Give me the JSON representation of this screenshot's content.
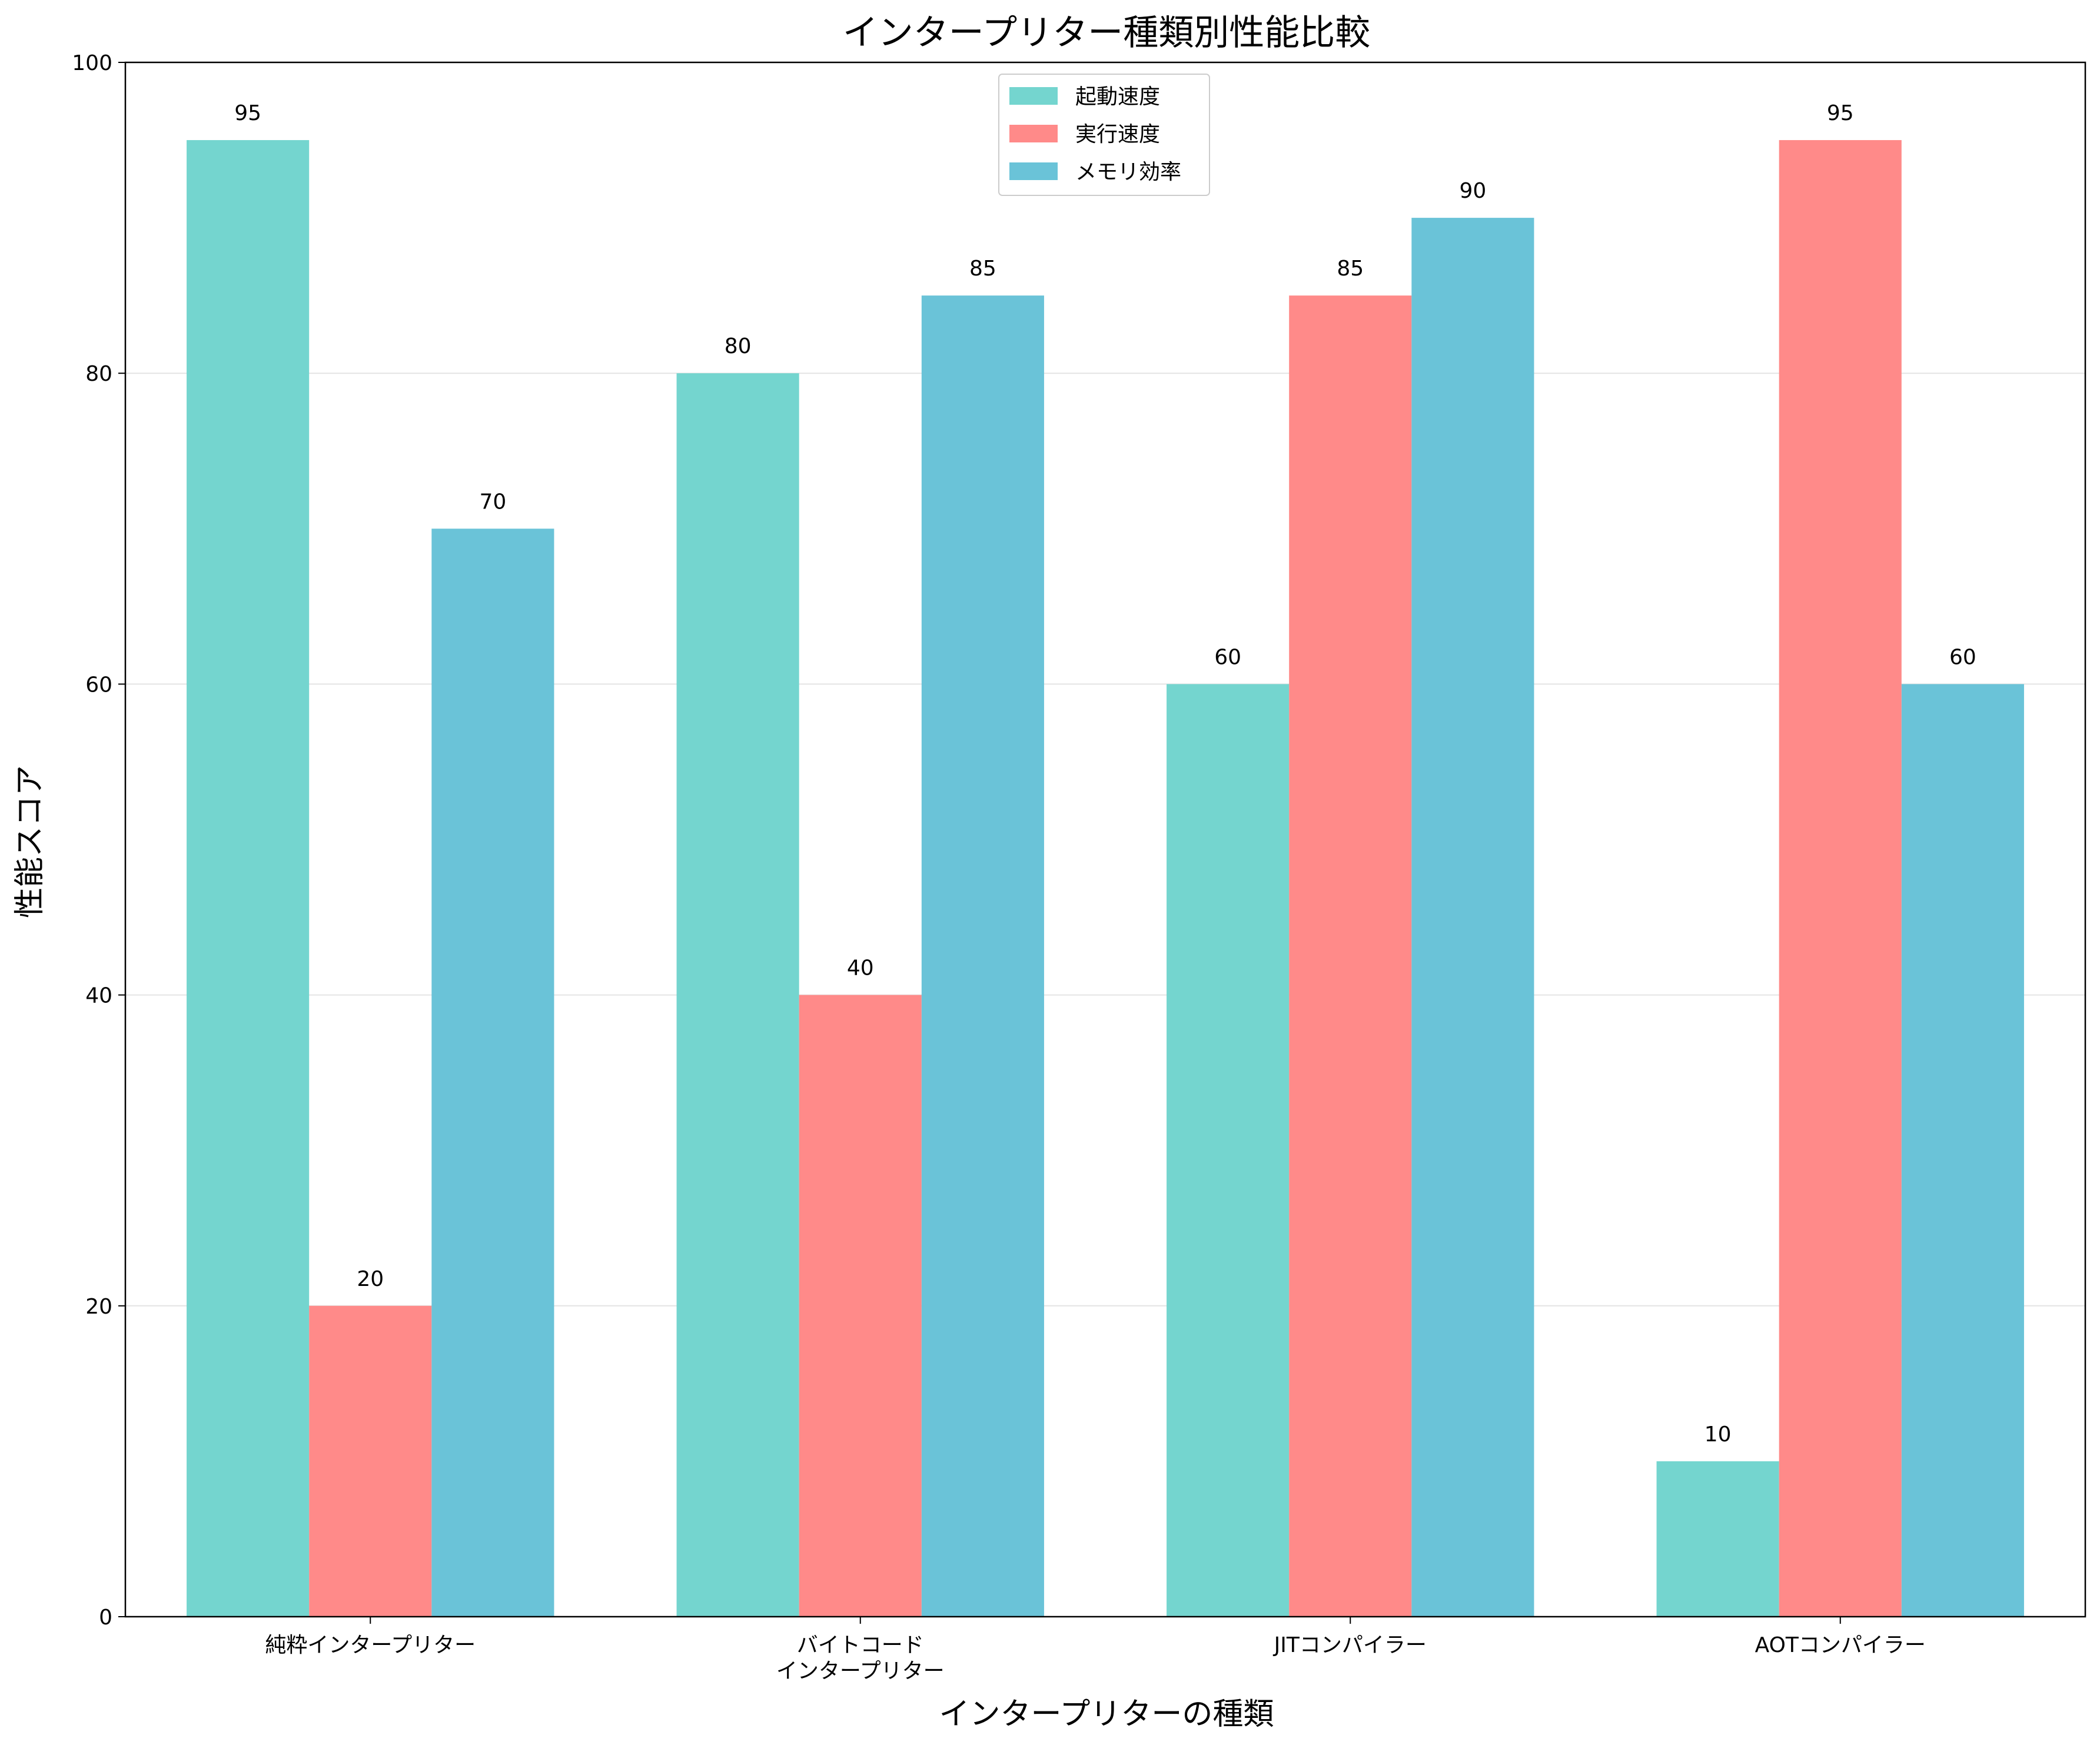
{
  "chart_data": {
    "type": "bar",
    "title": "インタープリター種類別性能比較",
    "xlabel": "インタープリターの種類",
    "ylabel": "性能スコア",
    "categories": [
      "純粋インタープリター",
      "バイトコード\nインタープリター",
      "JITコンパイラー",
      "AOTコンパイラー"
    ],
    "series": [
      {
        "name": "起動速度",
        "values": [
          95,
          80,
          60,
          10
        ],
        "color": "#74d5cf"
      },
      {
        "name": "実行速度",
        "values": [
          20,
          40,
          85,
          95
        ],
        "color": "#ff8a89"
      },
      {
        "name": "メモリ効率",
        "values": [
          70,
          85,
          90,
          60
        ],
        "color": "#6ac3d8"
      }
    ],
    "ylim": [
      0,
      100
    ],
    "yticks": [
      0,
      20,
      40,
      60,
      80,
      100
    ],
    "grid": "y",
    "legend": "top-center"
  }
}
